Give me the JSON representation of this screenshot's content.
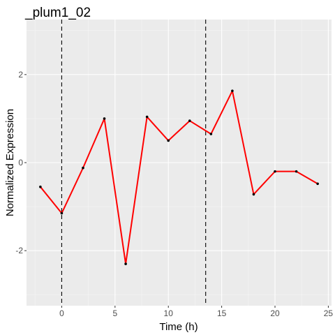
{
  "chart_data": {
    "type": "line",
    "title": "_plum1_02",
    "xlabel": "Time (h)",
    "ylabel": "Normalized Expression",
    "xlim": [
      -3.3,
      25.3
    ],
    "ylim": [
      -3.25,
      3.25
    ],
    "x_ticks": [
      0,
      5,
      10,
      15,
      20,
      25
    ],
    "y_ticks": [
      -2,
      0,
      2
    ],
    "x_tick_labels": [
      "0",
      "5",
      "10",
      "15",
      "20",
      "25"
    ],
    "y_tick_labels": [
      "-2",
      "0",
      "2"
    ],
    "grid": true,
    "legend": "none",
    "series": [
      {
        "color": "#ff0000",
        "point_color": "#000000",
        "x": [
          -2,
          0,
          2,
          4,
          6,
          8,
          10,
          12,
          14,
          16,
          18,
          20,
          22,
          24
        ],
        "y": [
          -0.55,
          -1.15,
          -0.12,
          1.0,
          -2.3,
          1.04,
          0.5,
          0.95,
          0.65,
          1.63,
          -0.72,
          -0.2,
          -0.2,
          -0.48
        ]
      }
    ],
    "vlines": [
      0,
      13.5
    ]
  }
}
